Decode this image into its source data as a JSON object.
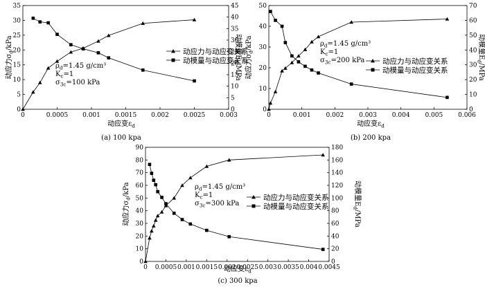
{
  "chart_data": [
    {
      "type": "line",
      "caption": "(a) 100 kpa",
      "xlabel": "动应变ε_d",
      "ylabel_left": "动应力σ_d/kPa",
      "ylabel_right": "动模量E_d/MPa",
      "xlim": [
        0,
        0.003
      ],
      "ylim_left": [
        0,
        35
      ],
      "ylim_right": [
        0,
        45
      ],
      "x_ticks": [
        "0",
        "0.0005",
        "0.001",
        "0.0015",
        "0.002",
        "0.0025",
        "0.003"
      ],
      "y_left_ticks": [
        "0",
        "5",
        "10",
        "15",
        "20",
        "25",
        "30",
        "35"
      ],
      "y_right_ticks": [
        "0",
        "5",
        "10",
        "15",
        "20",
        "25",
        "30",
        "35",
        "40",
        "45"
      ],
      "annotation": [
        "ρ_d=1.45 g/cm³",
        "K_c=1",
        "σ_3c=100 kPa"
      ],
      "series": [
        {
          "name": "动应力与动应变关系",
          "axis": "left",
          "marker": "triangle",
          "x": [
            0,
            0.00015,
            0.00025,
            0.00037,
            0.0005,
            0.0007,
            0.00088,
            0.0011,
            0.00125,
            0.00175,
            0.0025
          ],
          "y": [
            0,
            5.8,
            9.0,
            13.9,
            16.2,
            19.3,
            20.6,
            23.0,
            24.9,
            29.0,
            30.2
          ]
        },
        {
          "name": "动模量与动应变关系",
          "axis": "right",
          "marker": "square",
          "x": [
            0.00015,
            0.00025,
            0.00037,
            0.0005,
            0.0007,
            0.00088,
            0.0011,
            0.00125,
            0.00175,
            0.0025
          ],
          "y": [
            39.5,
            37.9,
            37.5,
            32.5,
            28.0,
            26.2,
            24.5,
            22.3,
            17.0,
            12.3
          ]
        }
      ]
    },
    {
      "type": "line",
      "caption": "(b) 200 kpa",
      "xlabel": "动应变ε_d",
      "ylabel_left": "动应力σ_d/kPa",
      "ylabel_right": "动模量E_d/MPa",
      "xlim": [
        0,
        0.006
      ],
      "ylim_left": [
        0,
        50
      ],
      "ylim_right": [
        0,
        70
      ],
      "x_ticks": [
        "0",
        "0.001",
        "0.002",
        "0.003",
        "0.004",
        "0.005",
        "0.006"
      ],
      "y_left_ticks": [
        "0",
        "10",
        "20",
        "30",
        "40",
        "50"
      ],
      "y_right_ticks": [
        "0",
        "10",
        "20",
        "30",
        "40",
        "50",
        "60",
        "70"
      ],
      "annotation": [
        "ρ_d=1.45 g/cm³",
        "K_c=1",
        "σ_3c=200 kPa"
      ],
      "series": [
        {
          "name": "动应力与动应变关系",
          "axis": "left",
          "marker": "triangle",
          "x": [
            0,
            5e-05,
            0.0002,
            0.0004,
            0.0005,
            0.0007,
            0.0009,
            0.0011,
            0.0013,
            0.0015,
            0.0025,
            0.0054
          ],
          "y": [
            0,
            3.0,
            8.5,
            18.5,
            19.8,
            22.5,
            25.7,
            28.8,
            32.5,
            35.0,
            42.0,
            43.5
          ]
        },
        {
          "name": "动模量与动应变关系",
          "axis": "right",
          "marker": "square",
          "x": [
            5e-05,
            0.0002,
            0.0004,
            0.0005,
            0.0007,
            0.0009,
            0.0011,
            0.0013,
            0.0015,
            0.0025,
            0.0054
          ],
          "y": [
            66.0,
            60.0,
            56.0,
            45.0,
            36.0,
            32.0,
            29.0,
            26.5,
            24.5,
            17.0,
            8.0
          ]
        }
      ]
    },
    {
      "type": "line",
      "caption": "(c) 300 kpa",
      "xlabel": "动应变ε_d",
      "ylabel_left": "动应力σ_d/kPa",
      "ylabel_right": "动模量E_d/MPa",
      "xlim": [
        0,
        0.0045
      ],
      "ylim_left": [
        0,
        90
      ],
      "ylim_right": [
        0,
        180
      ],
      "x_ticks": [
        "0",
        "0.0005",
        "0.001",
        "0.0015",
        "0.002",
        "0.0025",
        "0.003",
        "0.0035",
        "0.004",
        "0.0045"
      ],
      "y_left_ticks": [
        "0",
        "10",
        "20",
        "30",
        "40",
        "50",
        "60",
        "70",
        "80",
        "90"
      ],
      "y_right_ticks": [
        "0",
        "20",
        "40",
        "60",
        "80",
        "100",
        "120",
        "140",
        "160",
        "180"
      ],
      "annotation": [
        "ρ_d=1.45 g/cm³",
        "K_c=1",
        "σ_3c=300 kPa"
      ],
      "series": [
        {
          "name": "动应力与动应变关系",
          "axis": "left",
          "marker": "triangle",
          "x": [
            0,
            0.0001,
            0.00015,
            0.0002,
            0.00025,
            0.0003,
            0.0004,
            0.0005,
            0.0007,
            0.0009,
            0.0011,
            0.0015,
            0.00205,
            0.00435
          ],
          "y": [
            0,
            18.5,
            24.0,
            28.0,
            32.5,
            36.0,
            39.0,
            44.0,
            50.0,
            60.0,
            66.0,
            75.0,
            80.0,
            84.0
          ]
        },
        {
          "name": "动模量与动应变关系",
          "axis": "right",
          "marker": "square",
          "x": [
            0.0001,
            0.00015,
            0.0002,
            0.00025,
            0.0003,
            0.0004,
            0.0005,
            0.0007,
            0.0009,
            0.0011,
            0.0015,
            0.00205,
            0.00435
          ],
          "y": [
            153.0,
            139.0,
            128.0,
            121.0,
            110.0,
            101.0,
            91.0,
            76.0,
            66.0,
            59.0,
            49.0,
            39.0,
            19.0
          ]
        }
      ]
    }
  ]
}
